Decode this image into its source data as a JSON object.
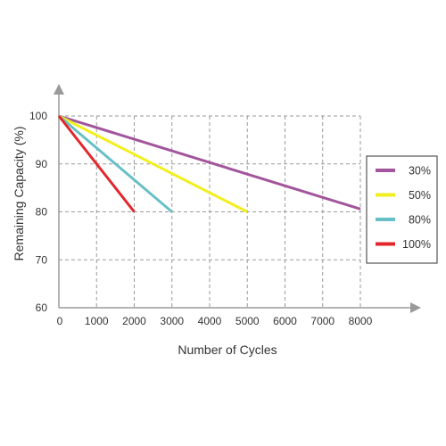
{
  "chart_data": {
    "type": "line",
    "xlabel": "Number of Cycles",
    "ylabel": "Remaining Capacity (%)",
    "xlim": [
      0,
      8000
    ],
    "ylim": [
      60,
      100
    ],
    "x_ticks": [
      "0",
      "1000",
      "2000",
      "3000",
      "4000",
      "5000",
      "6000",
      "7000",
      "8000"
    ],
    "y_ticks": [
      "60",
      "70",
      "80",
      "90",
      "100"
    ],
    "grid": true,
    "grid_style": "dashed",
    "legend_position": "right",
    "series": [
      {
        "name": "30%",
        "color": "#a2559b",
        "x": [
          0,
          8000
        ],
        "y": [
          100,
          80.6
        ]
      },
      {
        "name": "50%",
        "color": "#f2ef1f",
        "x": [
          0,
          5000
        ],
        "y": [
          100,
          80
        ]
      },
      {
        "name": "80%",
        "color": "#67c0c6",
        "x": [
          0,
          3000
        ],
        "y": [
          100,
          80
        ]
      },
      {
        "name": "100%",
        "color": "#e3262b",
        "x": [
          0,
          2000
        ],
        "y": [
          100,
          80
        ]
      }
    ]
  }
}
